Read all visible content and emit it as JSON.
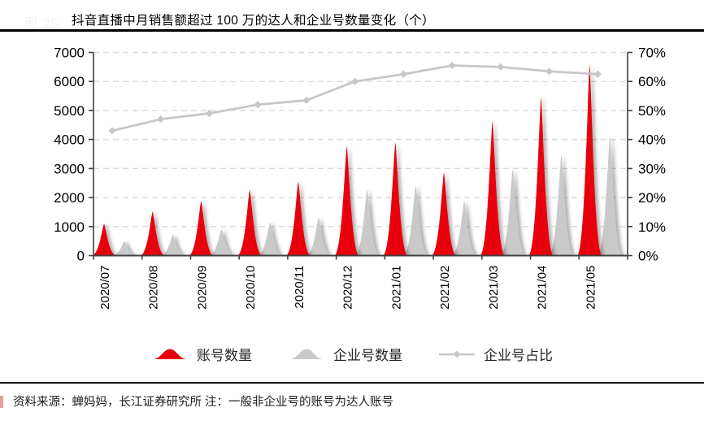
{
  "page": {
    "figure_label": "图 26:",
    "source_note": "资料来源：蝉妈妈，长江证券研究所  注：一般非企业号的账号为达人账号"
  },
  "colors": {
    "accent_red": "#e8000b",
    "gray_series": "#c9c9c9",
    "line_series": "#c7c7c7",
    "grid": "#d9d9d9",
    "axis": "#404040",
    "tick_label": "#000000",
    "title_rule": "#000000",
    "faint_label": "#f3f3f3"
  },
  "chart_data": {
    "type": "area",
    "variant": "bell-peak columns (dual series) with percentage line on secondary axis",
    "title": "抖音直播中月销售额超过 100 万的达人和企业号数量变化（个）",
    "categories": [
      "2020/07",
      "2020/08",
      "2020/09",
      "2020/10",
      "2020/11",
      "2020/12",
      "2021/01",
      "2021/02",
      "2021/03",
      "2021/04",
      "2021/05"
    ],
    "series": [
      {
        "name": "账号数量",
        "type": "peak-area",
        "axis": "left",
        "color": "#e8000b",
        "values": [
          1100,
          1520,
          1890,
          2280,
          2550,
          3780,
          3900,
          2870,
          4650,
          5470,
          6600
        ]
      },
      {
        "name": "企业号数量",
        "type": "peak-area",
        "axis": "left",
        "color": "#c9c9c9",
        "values": [
          500,
          720,
          900,
          1150,
          1310,
          2280,
          2430,
          1890,
          3000,
          3470,
          4120
        ]
      },
      {
        "name": "企业号占比",
        "type": "line",
        "axis": "right",
        "color": "#c7c7c7",
        "marker": "diamond",
        "values_pct": [
          43,
          47,
          49,
          52,
          53.5,
          60,
          62.5,
          65.5,
          65,
          63.5,
          62.5
        ]
      }
    ],
    "y_left": {
      "min": 0,
      "max": 7000,
      "step": 1000,
      "ticks": [
        "0",
        "1000",
        "2000",
        "3000",
        "4000",
        "5000",
        "6000",
        "7000"
      ]
    },
    "y_right": {
      "min": 0,
      "max": 70,
      "step": 10,
      "unit": "%",
      "ticks": [
        "0%",
        "10%",
        "20%",
        "30%",
        "40%",
        "50%",
        "60%",
        "70%"
      ]
    },
    "grid": "horizontal-dashed",
    "legend_position": "bottom-center",
    "x_tick_label_rotation": -90
  }
}
